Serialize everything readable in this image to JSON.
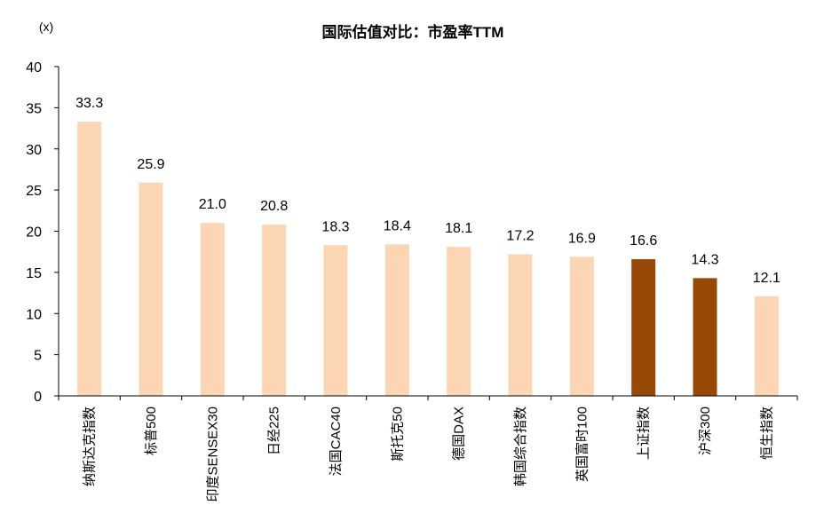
{
  "chart_data": {
    "type": "bar",
    "title": "国际估值对比：市盈率TTM",
    "unit_label": "(x)",
    "ylim": [
      0,
      40
    ],
    "yticks": [
      0,
      5,
      10,
      15,
      20,
      25,
      30,
      35,
      40
    ],
    "grid": false,
    "legend": "none",
    "categories": [
      "纳斯达克指数",
      "标普500",
      "印度SENSEX30",
      "日经225",
      "法国CAC40",
      "斯托克50",
      "德国DAX",
      "韩国综合指数",
      "英国富时100",
      "上证指数",
      "沪深300",
      "恒生指数"
    ],
    "values": [
      33.3,
      25.9,
      21.0,
      20.8,
      18.3,
      18.4,
      18.1,
      17.2,
      16.9,
      16.6,
      14.3,
      12.1
    ],
    "value_labels": [
      "33.3",
      "25.9",
      "21.0",
      "20.8",
      "18.3",
      "18.4",
      "18.1",
      "17.2",
      "16.9",
      "16.6",
      "14.3",
      "12.1"
    ],
    "colors": {
      "default": "#FCD5B5",
      "highlight": "#984807",
      "axis": "#000000"
    },
    "highlighted": [
      9,
      10
    ]
  }
}
